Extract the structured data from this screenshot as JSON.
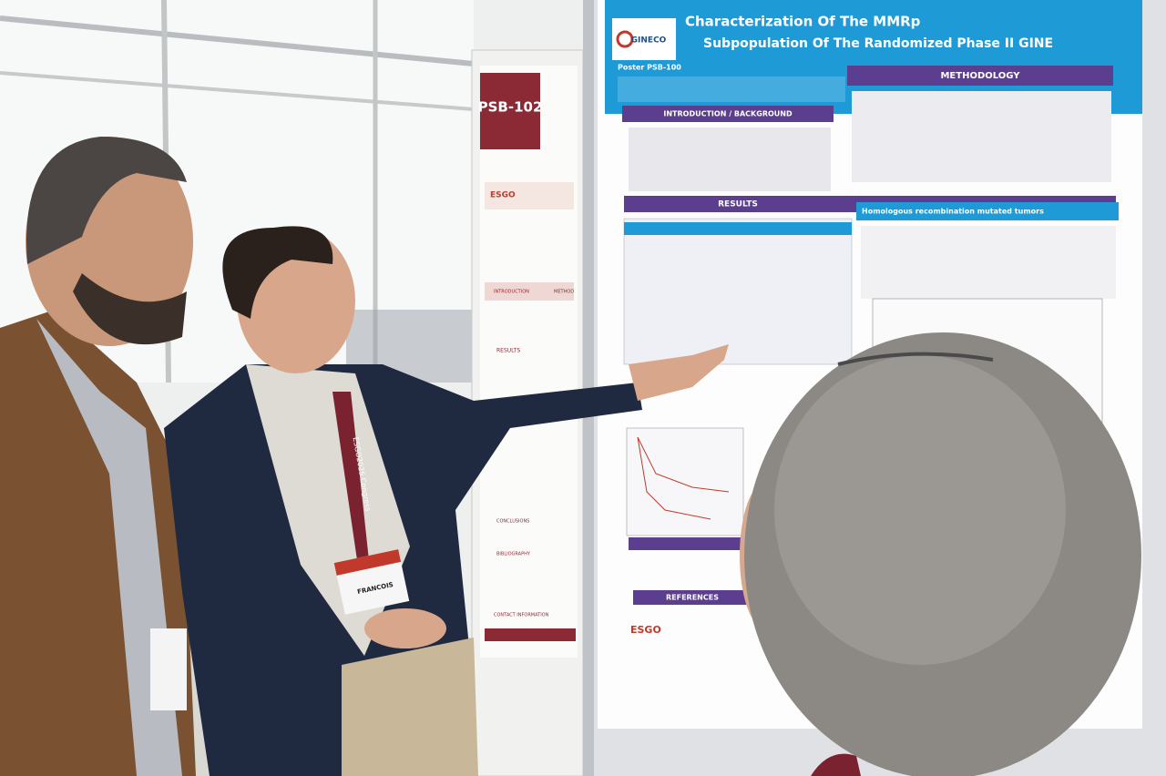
{
  "left_poster": {
    "code": "PSB-102",
    "logo": "ESGO",
    "headings": [
      "INTRODUCTION",
      "METHOD",
      "RESULTS",
      "CONCLUSIONS",
      "BIBLIOGRAPHY",
      "CONTACT INFORMATION"
    ]
  },
  "main_poster": {
    "title_lines": [
      "Characterization Of The MMRp",
      "Subpopulation Of The Randomized Phase II GINE"
    ],
    "logo": "GINECO",
    "poster_id": "Poster PSB-100",
    "sections": [
      "INTRODUCTION / BACKGROUND",
      "METHODOLOGY",
      "RESULTS",
      "Homologous recombination mutated tumors",
      "REFERENCES"
    ],
    "footer_logo": "ESGO"
  },
  "badge": {
    "name": "FRANCOIS",
    "lanyard": "ESGO2025 Congress"
  }
}
